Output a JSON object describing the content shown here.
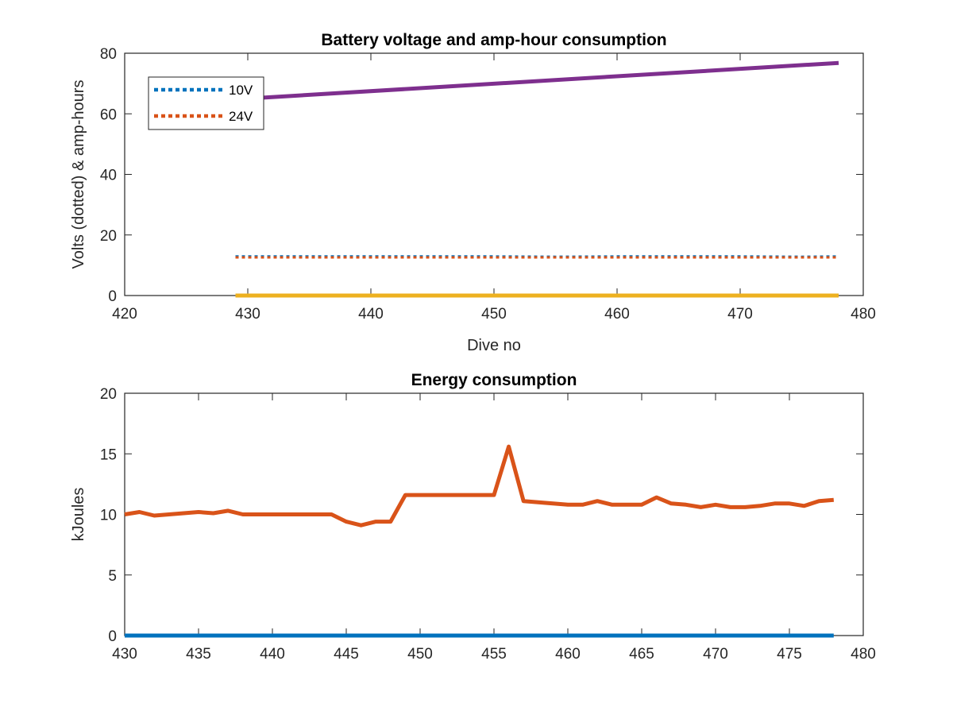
{
  "chart_data": [
    {
      "type": "line",
      "title": "Battery voltage and amp-hour consumption",
      "xlabel": "Dive no",
      "ylabel": "Volts (dotted) & amp-hours",
      "xlim": [
        420,
        480
      ],
      "ylim": [
        0,
        80
      ],
      "xticks": [
        420,
        430,
        440,
        450,
        460,
        470,
        480
      ],
      "yticks": [
        0,
        20,
        40,
        60,
        80
      ],
      "legend_position": "top-left",
      "legend": [
        {
          "label": "10V",
          "color": "#0072BD",
          "style": "dotted"
        },
        {
          "label": "24V",
          "color": "#D95319",
          "style": "dotted"
        }
      ],
      "series": [
        {
          "name": "10V",
          "color": "#0072BD",
          "style": "dotted",
          "x": [
            429,
            435,
            440,
            445,
            450,
            455,
            460,
            465,
            470,
            475,
            478
          ],
          "y": [
            12.9,
            12.9,
            12.9,
            12.9,
            12.9,
            12.8,
            12.9,
            12.9,
            12.9,
            12.8,
            12.9
          ]
        },
        {
          "name": "24V",
          "color": "#D95319",
          "style": "dotted",
          "x": [
            429,
            435,
            440,
            445,
            450,
            455,
            460,
            465,
            470,
            475,
            478
          ],
          "y": [
            12.6,
            12.6,
            12.6,
            12.6,
            12.6,
            12.6,
            12.6,
            12.6,
            12.6,
            12.6,
            12.6
          ]
        },
        {
          "color": "#EDB120",
          "style": "solid",
          "x": [
            429,
            478
          ],
          "y": [
            0,
            0
          ]
        },
        {
          "color": "#7E2F8E",
          "style": "solid",
          "x": [
            429,
            478
          ],
          "y": [
            64.8,
            76.8
          ]
        }
      ]
    },
    {
      "type": "line",
      "title": "Energy consumption",
      "xlabel": "",
      "ylabel": "kJoules",
      "xlim": [
        430,
        480
      ],
      "ylim": [
        0,
        20
      ],
      "xticks": [
        430,
        435,
        440,
        445,
        450,
        455,
        460,
        465,
        470,
        475,
        480
      ],
      "yticks": [
        0,
        5,
        10,
        15,
        20
      ],
      "series": [
        {
          "color": "#0072BD",
          "style": "solid",
          "x": [
            430,
            478
          ],
          "y": [
            0,
            0
          ]
        },
        {
          "color": "#D95319",
          "style": "solid",
          "x": [
            430,
            431,
            432,
            433,
            434,
            435,
            436,
            437,
            438,
            439,
            440,
            441,
            442,
            443,
            444,
            445,
            446,
            447,
            448,
            449,
            450,
            451,
            452,
            453,
            454,
            455,
            456,
            457,
            458,
            459,
            460,
            461,
            462,
            463,
            464,
            465,
            466,
            467,
            468,
            469,
            470,
            471,
            472,
            473,
            474,
            475,
            476,
            477,
            478
          ],
          "y": [
            10.0,
            10.2,
            9.9,
            10.0,
            10.1,
            10.2,
            10.1,
            10.3,
            10.0,
            10.0,
            10.0,
            10.0,
            10.0,
            10.0,
            10.0,
            9.4,
            9.1,
            9.4,
            9.4,
            11.6,
            11.6,
            11.6,
            11.6,
            11.6,
            11.6,
            11.6,
            15.6,
            11.1,
            11.0,
            10.9,
            10.8,
            10.8,
            11.1,
            10.8,
            10.8,
            10.8,
            11.4,
            10.9,
            10.8,
            10.6,
            10.8,
            10.6,
            10.6,
            10.7,
            10.9,
            10.9,
            10.7,
            11.1,
            11.2
          ]
        }
      ]
    }
  ]
}
